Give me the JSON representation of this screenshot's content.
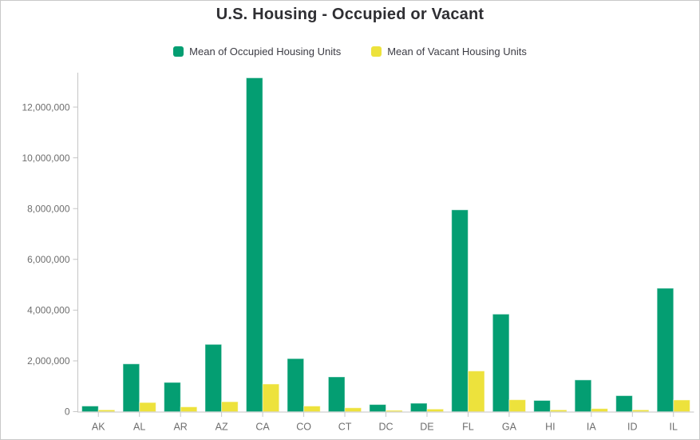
{
  "colors": {
    "background": "#ffffff",
    "border": "#c9c9c9",
    "title": "#2f2f33",
    "axis": "#c6c6c6",
    "axis_label": "#6e6e6e",
    "occupied_green": "#049e72",
    "vacant_yellow": "#ede23c"
  },
  "chart_data": {
    "type": "bar",
    "title": "U.S. Housing - Occupied or Vacant",
    "xlabel": "",
    "ylabel": "",
    "grid": false,
    "legend_position": "top",
    "categories": [
      "AK",
      "AL",
      "AR",
      "AZ",
      "CA",
      "CO",
      "CT",
      "DC",
      "DE",
      "FL",
      "GA",
      "HI",
      "IA",
      "ID",
      "IL"
    ],
    "series": [
      {
        "name": "Mean of Occupied Housing Units",
        "color": "#049e72",
        "values": [
          220000,
          1880000,
          1150000,
          2650000,
          13150000,
          2090000,
          1370000,
          280000,
          330000,
          7950000,
          3840000,
          440000,
          1250000,
          630000,
          4860000
        ]
      },
      {
        "name": "Mean of Vacant Housing Units",
        "color": "#ede23c",
        "values": [
          70000,
          360000,
          190000,
          390000,
          1090000,
          220000,
          150000,
          50000,
          100000,
          1600000,
          470000,
          70000,
          120000,
          70000,
          460000
        ]
      }
    ],
    "ylim": [
      0,
      13350000
    ],
    "yticks": [
      0,
      2000000,
      4000000,
      6000000,
      8000000,
      10000000,
      12000000
    ],
    "ytick_labels": [
      "0",
      "2,000,000",
      "4,000,000",
      "6,000,000",
      "8,000,000",
      "10,000,000",
      "12,000,000"
    ]
  }
}
